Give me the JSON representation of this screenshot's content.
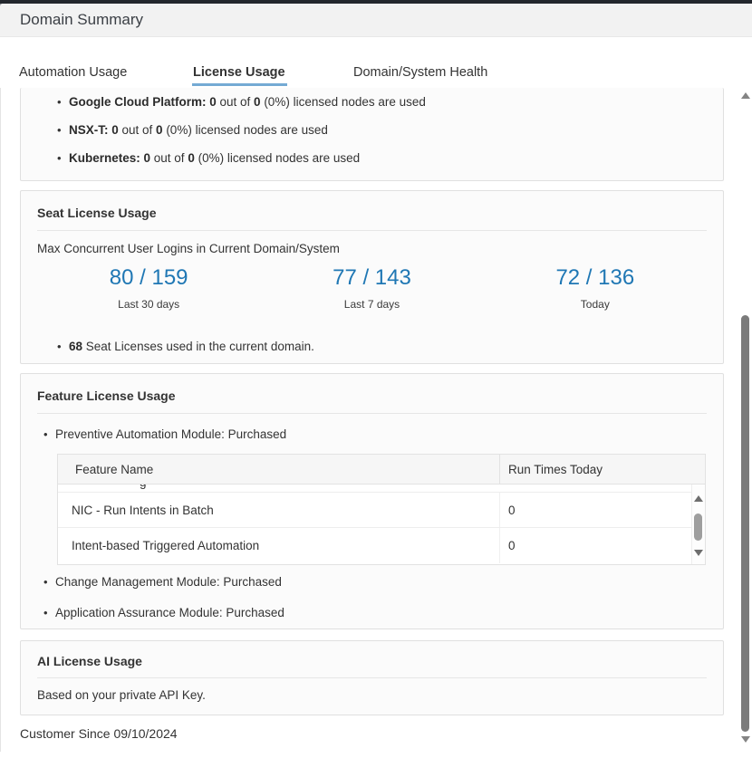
{
  "colors": {
    "accent_blue": "#1f77b4",
    "tab_underline": "#74aad4",
    "header_bg": "#f2f2f2"
  },
  "window": {
    "title": "Domain Summary"
  },
  "tabs": [
    {
      "id": "automation-usage",
      "label": "Automation Usage",
      "active": false
    },
    {
      "id": "license-usage",
      "label": "License Usage",
      "active": true
    },
    {
      "id": "domain-system-health",
      "label": "Domain/System Health",
      "active": false
    }
  ],
  "node_license_usage": {
    "items": [
      {
        "segments": [
          [
            "Google Cloud Platform: 0",
            true
          ],
          [
            " out of ",
            false
          ],
          [
            "0",
            true
          ],
          [
            " (0%) licensed nodes are used",
            false
          ]
        ]
      },
      {
        "segments": [
          [
            "NSX-T: 0",
            true
          ],
          [
            " out of ",
            false
          ],
          [
            "0",
            true
          ],
          [
            " (0%) licensed nodes are used",
            false
          ]
        ]
      },
      {
        "segments": [
          [
            "Kubernetes: 0",
            true
          ],
          [
            " out of ",
            false
          ],
          [
            "0",
            true
          ],
          [
            " (0%) licensed nodes are used",
            false
          ]
        ]
      }
    ]
  },
  "seat_license": {
    "title": "Seat License Usage",
    "subtitle": "Max Concurrent User Logins in Current Domain/System",
    "stats": [
      {
        "value": "80 / 159",
        "label": "Last 30 days"
      },
      {
        "value": "77 / 143",
        "label": "Last 7 days"
      },
      {
        "value": "72 / 136",
        "label": "Today"
      }
    ],
    "note_segments": [
      [
        "68",
        true
      ],
      [
        " Seat Licenses used in the current domain.",
        false
      ]
    ]
  },
  "feature_license": {
    "title": "Feature License Usage",
    "modules_before": [
      "Preventive Automation Module: Purchased"
    ],
    "table": {
      "headers": [
        "Feature Name",
        "Run Times Today"
      ],
      "partial_row_visible_fragment": "g",
      "rows": [
        {
          "feature": "NIC - Run Intents in Batch",
          "run_times": "0"
        },
        {
          "feature": "Intent-based Triggered Automation",
          "run_times": "0"
        }
      ]
    },
    "modules_after": [
      "Change Management Module: Purchased",
      "Application Assurance Module: Purchased"
    ]
  },
  "ai_license": {
    "title": "AI License Usage",
    "body": "Based on your private API Key."
  },
  "footer": {
    "customer_since": "Customer Since 09/10/2024"
  }
}
